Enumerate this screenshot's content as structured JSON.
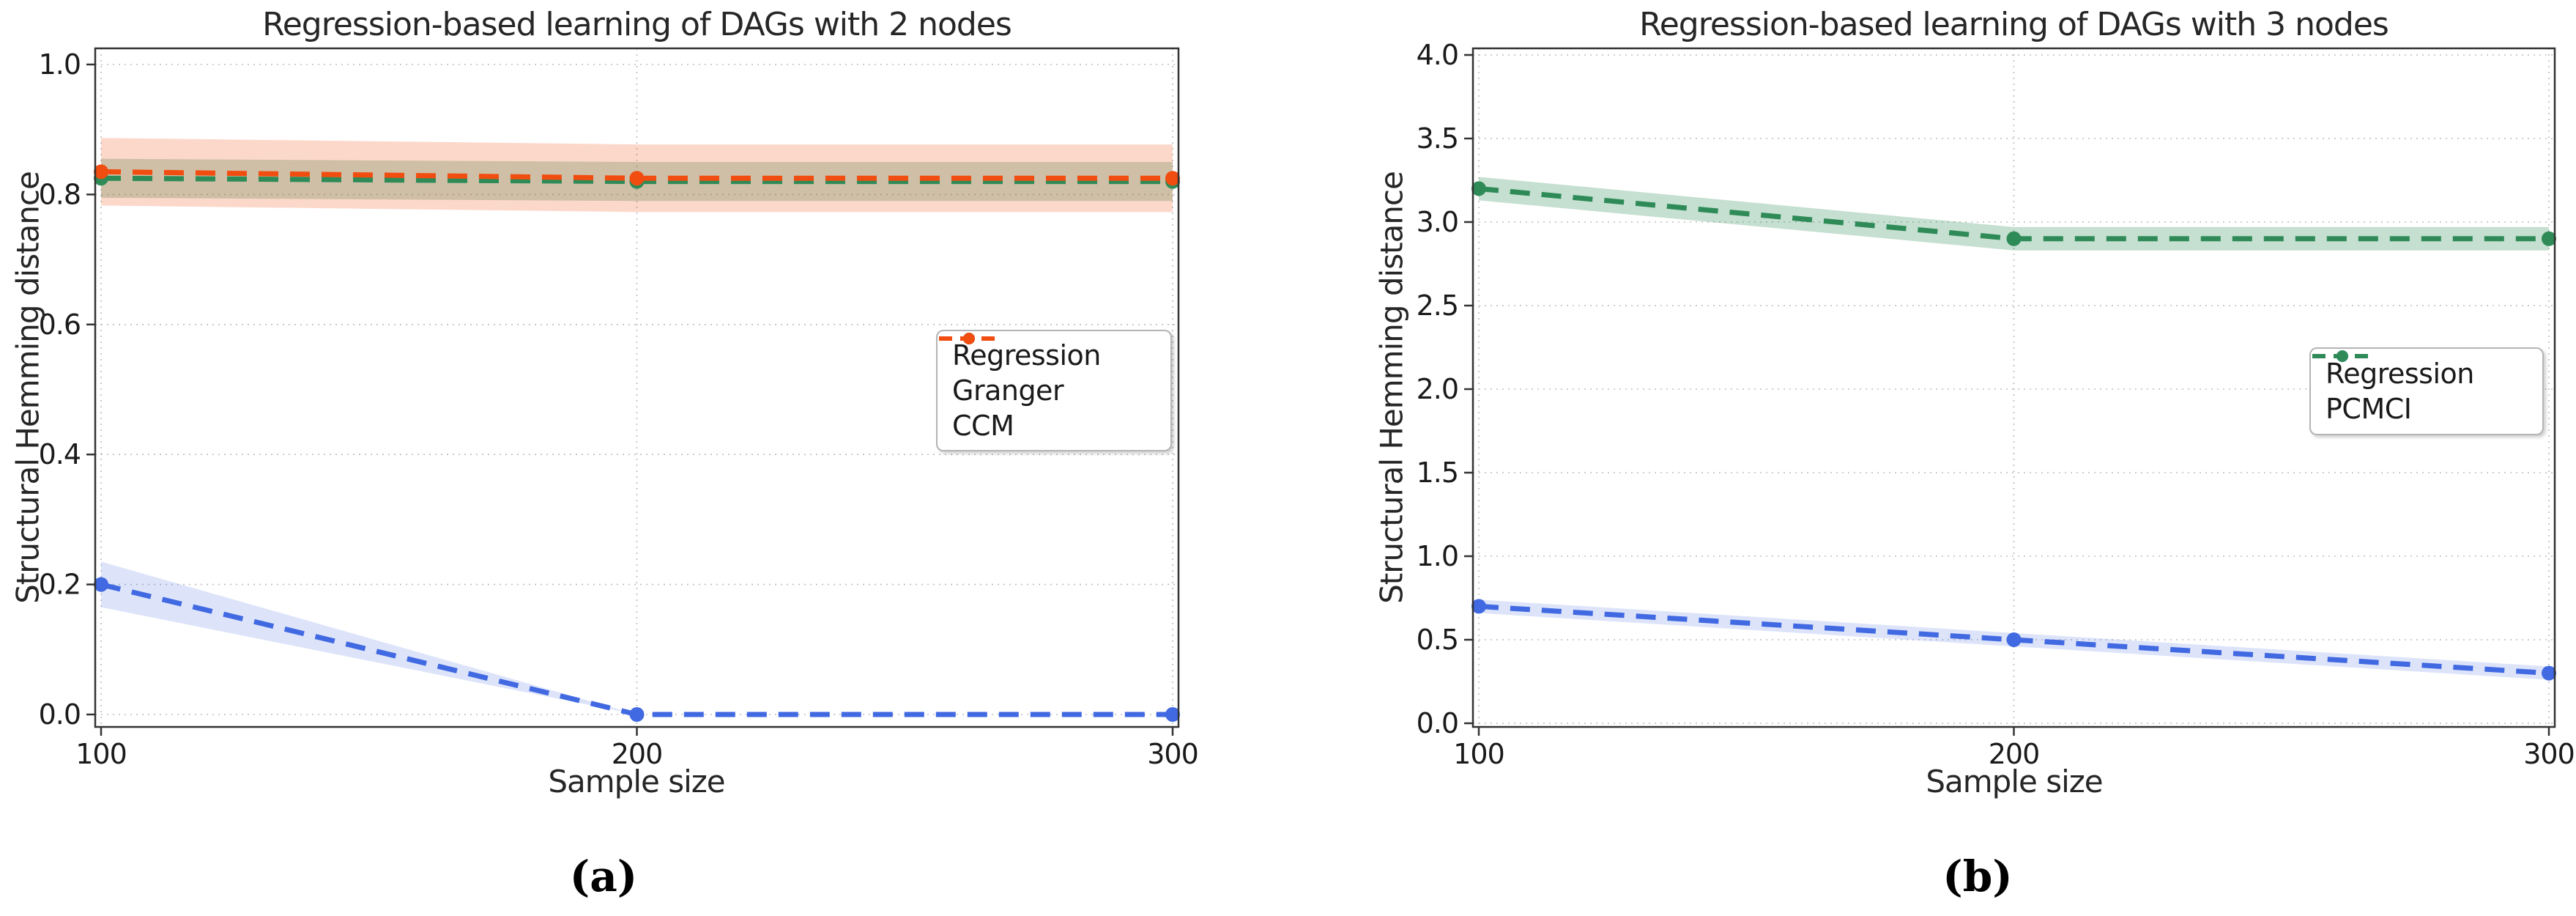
{
  "page": {
    "background": "#ffffff",
    "spine_color": "#333333",
    "grid_color": "#bdbdbd",
    "text_color": "#262626"
  },
  "panels": [
    {
      "caption": "(a)"
    },
    {
      "caption": "(b)"
    }
  ],
  "chart_data": [
    {
      "type": "line",
      "title": "Regression-based learning of DAGs with 2 nodes",
      "xlabel": "Sample size",
      "ylabel": "Structural Hemming distance",
      "x": [
        100,
        200,
        300
      ],
      "xticks": [
        100,
        200,
        300
      ],
      "yticks": [
        0.0,
        0.2,
        0.4,
        0.6,
        0.8,
        1.0
      ],
      "ylim": [
        0.0,
        1.0
      ],
      "xlim": [
        100,
        300
      ],
      "grid": true,
      "line_style": "dashed-with-dot-markers",
      "legend_position": "center right",
      "series": [
        {
          "name": "Regression",
          "color": "#4169e1",
          "band_color": "rgba(65,105,225,0.18)",
          "values": [
            0.2,
            0.0,
            0.0
          ],
          "band_low": [
            0.165,
            0.0,
            0.0
          ],
          "band_high": [
            0.235,
            0.0,
            0.0
          ]
        },
        {
          "name": "Granger",
          "color": "#2e8b57",
          "band_color": "rgba(46,139,87,0.28)",
          "values": [
            0.825,
            0.82,
            0.82
          ],
          "band_low": [
            0.795,
            0.79,
            0.79
          ],
          "band_high": [
            0.855,
            0.85,
            0.85
          ]
        },
        {
          "name": "CCM",
          "color": "#f24d10",
          "band_color": "rgba(242,77,16,0.22)",
          "values": [
            0.835,
            0.825,
            0.825
          ],
          "band_low": [
            0.783,
            0.773,
            0.773
          ],
          "band_high": [
            0.887,
            0.877,
            0.877
          ]
        }
      ]
    },
    {
      "type": "line",
      "title": "Regression-based learning of DAGs with 3 nodes",
      "xlabel": "Sample size",
      "ylabel": "Structural Hemming distance",
      "x": [
        100,
        200,
        300
      ],
      "xticks": [
        100,
        200,
        300
      ],
      "yticks": [
        0.0,
        0.5,
        1.0,
        1.5,
        2.0,
        2.5,
        3.0,
        3.5,
        4.0
      ],
      "ylim": [
        0.0,
        4.0
      ],
      "xlim": [
        100,
        300
      ],
      "grid": true,
      "line_style": "dashed-with-dot-markers",
      "legend_position": "center right",
      "series": [
        {
          "name": "Regression",
          "color": "#4169e1",
          "band_color": "rgba(65,105,225,0.18)",
          "values": [
            0.7,
            0.5,
            0.3
          ],
          "band_low": [
            0.66,
            0.46,
            0.26
          ],
          "band_high": [
            0.74,
            0.54,
            0.34
          ]
        },
        {
          "name": "PCMCI",
          "color": "#2e8b57",
          "band_color": "rgba(46,139,87,0.28)",
          "values": [
            3.2,
            2.9,
            2.9
          ],
          "band_low": [
            3.13,
            2.83,
            2.83
          ],
          "band_high": [
            3.27,
            2.97,
            2.97
          ]
        }
      ]
    }
  ]
}
